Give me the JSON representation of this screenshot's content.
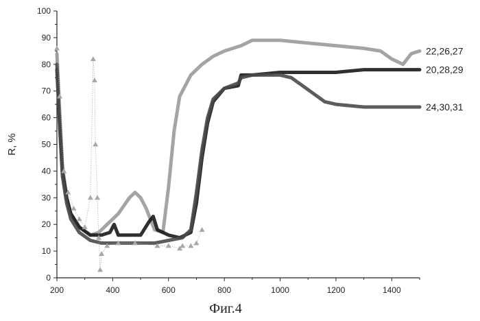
{
  "chart_data": {
    "type": "line",
    "title": "",
    "caption": "Фиг.4",
    "xlabel": "",
    "ylabel": "R, %",
    "xlim": [
      200,
      1500
    ],
    "ylim": [
      0,
      100
    ],
    "x_ticks": [
      200,
      400,
      600,
      800,
      1000,
      1200,
      1400
    ],
    "y_ticks": [
      0,
      10,
      20,
      30,
      40,
      50,
      60,
      70,
      80,
      90,
      100
    ],
    "grid": false,
    "series": [
      {
        "name": "22,26,27",
        "color": "#9a9a9a",
        "points": [
          [
            200,
            84
          ],
          [
            210,
            62
          ],
          [
            220,
            42
          ],
          [
            235,
            30
          ],
          [
            250,
            24
          ],
          [
            280,
            19
          ],
          [
            320,
            16
          ],
          [
            350,
            17
          ],
          [
            380,
            20
          ],
          [
            420,
            24
          ],
          [
            460,
            30
          ],
          [
            480,
            32
          ],
          [
            500,
            30
          ],
          [
            520,
            26
          ],
          [
            550,
            18
          ],
          [
            580,
            17
          ],
          [
            600,
            34
          ],
          [
            620,
            55
          ],
          [
            640,
            68
          ],
          [
            680,
            76
          ],
          [
            720,
            80
          ],
          [
            760,
            83
          ],
          [
            800,
            85
          ],
          [
            860,
            87
          ],
          [
            900,
            89
          ],
          [
            1000,
            89
          ],
          [
            1100,
            88
          ],
          [
            1200,
            87
          ],
          [
            1300,
            86
          ],
          [
            1360,
            85
          ],
          [
            1400,
            82
          ],
          [
            1440,
            80
          ],
          [
            1470,
            84
          ],
          [
            1500,
            85
          ]
        ]
      },
      {
        "name": "20,28,29",
        "color": "#1a1a1a",
        "points": [
          [
            200,
            78
          ],
          [
            210,
            58
          ],
          [
            220,
            40
          ],
          [
            235,
            30
          ],
          [
            250,
            24
          ],
          [
            280,
            19
          ],
          [
            320,
            16
          ],
          [
            360,
            16
          ],
          [
            390,
            17
          ],
          [
            405,
            20
          ],
          [
            420,
            16
          ],
          [
            460,
            16
          ],
          [
            500,
            16
          ],
          [
            530,
            21
          ],
          [
            545,
            23
          ],
          [
            560,
            18
          ],
          [
            600,
            16
          ],
          [
            640,
            15
          ],
          [
            680,
            17
          ],
          [
            700,
            28
          ],
          [
            720,
            45
          ],
          [
            740,
            58
          ],
          [
            760,
            66
          ],
          [
            800,
            71
          ],
          [
            850,
            72
          ],
          [
            860,
            76
          ],
          [
            900,
            76
          ],
          [
            1000,
            77
          ],
          [
            1100,
            77
          ],
          [
            1200,
            77
          ],
          [
            1300,
            78
          ],
          [
            1400,
            78
          ],
          [
            1500,
            78
          ]
        ]
      },
      {
        "name": "24,30,31",
        "color": "#4a4a4a",
        "points": [
          [
            200,
            80
          ],
          [
            210,
            56
          ],
          [
            220,
            38
          ],
          [
            235,
            28
          ],
          [
            250,
            22
          ],
          [
            280,
            17
          ],
          [
            320,
            14
          ],
          [
            360,
            13
          ],
          [
            400,
            13
          ],
          [
            450,
            13
          ],
          [
            500,
            13
          ],
          [
            550,
            13
          ],
          [
            600,
            14
          ],
          [
            650,
            15
          ],
          [
            680,
            18
          ],
          [
            700,
            32
          ],
          [
            720,
            48
          ],
          [
            740,
            60
          ],
          [
            760,
            67
          ],
          [
            800,
            71
          ],
          [
            850,
            73
          ],
          [
            860,
            75
          ],
          [
            900,
            76
          ],
          [
            1000,
            76
          ],
          [
            1040,
            75
          ],
          [
            1080,
            72
          ],
          [
            1120,
            69
          ],
          [
            1160,
            66
          ],
          [
            1200,
            65
          ],
          [
            1300,
            64
          ],
          [
            1400,
            64
          ],
          [
            1500,
            64
          ]
        ]
      },
      {
        "name": "",
        "color": "#a8a8a8",
        "style": "points",
        "points": [
          [
            200,
            86
          ],
          [
            210,
            68
          ],
          [
            225,
            40
          ],
          [
            240,
            32
          ],
          [
            260,
            26
          ],
          [
            280,
            22
          ],
          [
            300,
            19
          ],
          [
            320,
            30
          ],
          [
            330,
            82
          ],
          [
            335,
            74
          ],
          [
            338,
            50
          ],
          [
            345,
            30
          ],
          [
            350,
            15
          ],
          [
            355,
            3
          ],
          [
            360,
            9
          ],
          [
            380,
            12
          ],
          [
            420,
            13
          ],
          [
            480,
            13
          ],
          [
            560,
            12
          ],
          [
            600,
            12
          ],
          [
            640,
            11
          ],
          [
            650,
            12
          ],
          [
            680,
            12
          ],
          [
            700,
            13
          ],
          [
            720,
            18
          ]
        ]
      }
    ]
  }
}
